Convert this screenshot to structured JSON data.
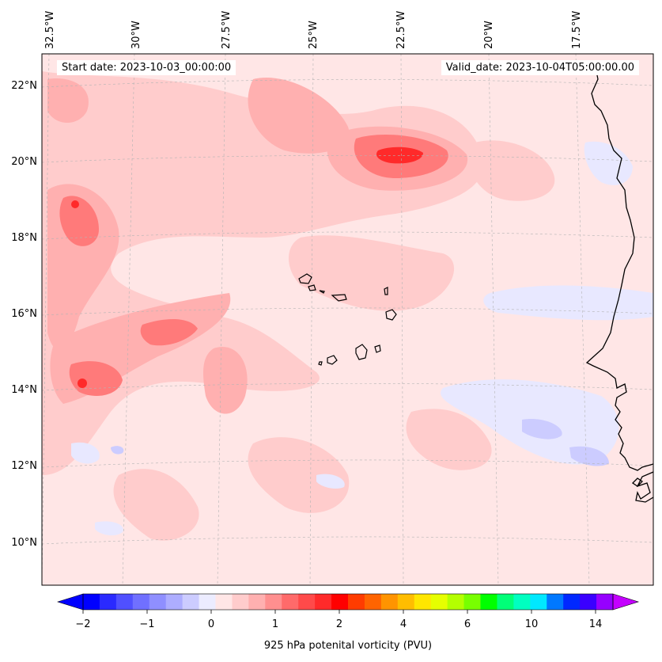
{
  "map": {
    "longitude_labels": [
      "32.5°W",
      "30°W",
      "27.5°W",
      "25°W",
      "22.5°W",
      "20°W",
      "17.5°W"
    ],
    "latitude_labels": [
      "22°N",
      "20°N",
      "18°N",
      "16°N",
      "14°N",
      "12°N",
      "10°N"
    ],
    "start_date": "Start date: 2023-10-03_00:00:00",
    "valid_date": "Valid_date: 2023-10-04T05:00:00.00",
    "field": "925 hPa potential vorticity",
    "colors": {
      "ocean_base": "#ffe6e6",
      "light_pink": "#ffcccc",
      "mid_pink": "#ffb0b0",
      "strong_red": "#ff7a7a",
      "peak_red": "#ff2a2a",
      "light_blue": "#e8e8ff",
      "blue": "#ccccff",
      "coastline": "#000000"
    }
  },
  "colorbar": {
    "title": "925 hPa potenital vorticity (PVU)",
    "tick_labels": [
      "−2",
      "−1",
      "0",
      "1",
      "2",
      "4",
      "6",
      "10",
      "14"
    ],
    "colors": [
      "#0000ff",
      "#2a2aff",
      "#5050ff",
      "#7070ff",
      "#8f8fff",
      "#adadff",
      "#ccccff",
      "#ececff",
      "#ffe6e6",
      "#ffcccc",
      "#ffb0b0",
      "#ff8f8f",
      "#ff6a6a",
      "#ff4a4a",
      "#ff2a2a",
      "#ff0000",
      "#ff3c00",
      "#ff6400",
      "#ff9400",
      "#ffbd00",
      "#ffe600",
      "#e6ff00",
      "#b4ff00",
      "#78ff00",
      "#00ff00",
      "#00ff78",
      "#00ffc0",
      "#00e8ff",
      "#0078ff",
      "#0028ff",
      "#3a00ff",
      "#9600ff"
    ],
    "under_color": "#0000ff",
    "over_color": "#c400ff"
  }
}
